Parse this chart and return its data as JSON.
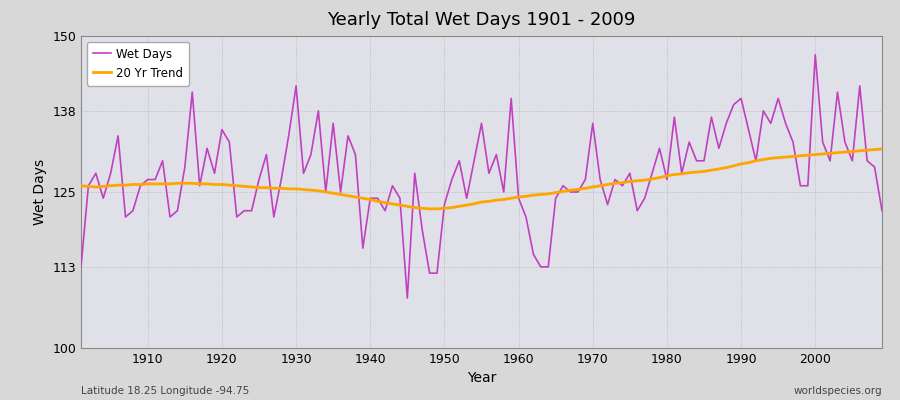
{
  "title": "Yearly Total Wet Days 1901 - 2009",
  "xlabel": "Year",
  "ylabel": "Wet Days",
  "subtitle_left": "Latitude 18.25 Longitude -94.75",
  "subtitle_right": "worldspecies.org",
  "wet_days_color": "#c040c0",
  "trend_color": "#FFA500",
  "fig_bg_color": "#d8d8d8",
  "plot_bg_color": "#e0e0e8",
  "ylim": [
    100,
    150
  ],
  "xlim": [
    1901,
    2009
  ],
  "yticks": [
    100,
    113,
    125,
    138,
    150
  ],
  "xticks": [
    1910,
    1920,
    1930,
    1940,
    1950,
    1960,
    1970,
    1980,
    1990,
    2000
  ],
  "years": [
    1901,
    1902,
    1903,
    1904,
    1905,
    1906,
    1907,
    1908,
    1909,
    1910,
    1911,
    1912,
    1913,
    1914,
    1915,
    1916,
    1917,
    1918,
    1919,
    1920,
    1921,
    1922,
    1923,
    1924,
    1925,
    1926,
    1927,
    1928,
    1929,
    1930,
    1931,
    1932,
    1933,
    1934,
    1935,
    1936,
    1937,
    1938,
    1939,
    1940,
    1941,
    1942,
    1943,
    1944,
    1945,
    1946,
    1947,
    1948,
    1949,
    1950,
    1951,
    1952,
    1953,
    1954,
    1955,
    1956,
    1957,
    1958,
    1959,
    1960,
    1961,
    1962,
    1963,
    1964,
    1965,
    1966,
    1967,
    1968,
    1969,
    1970,
    1971,
    1972,
    1973,
    1974,
    1975,
    1976,
    1977,
    1978,
    1979,
    1980,
    1981,
    1982,
    1983,
    1984,
    1985,
    1986,
    1987,
    1988,
    1989,
    1990,
    1991,
    1992,
    1993,
    1994,
    1995,
    1996,
    1997,
    1998,
    1999,
    2000,
    2001,
    2002,
    2003,
    2004,
    2005,
    2006,
    2007,
    2008,
    2009
  ],
  "wet_days": [
    113,
    126,
    128,
    124,
    128,
    134,
    121,
    122,
    126,
    127,
    127,
    130,
    121,
    122,
    129,
    141,
    126,
    132,
    128,
    135,
    133,
    121,
    122,
    122,
    127,
    131,
    121,
    127,
    134,
    142,
    128,
    131,
    138,
    125,
    136,
    125,
    134,
    131,
    116,
    124,
    124,
    122,
    126,
    124,
    108,
    128,
    119,
    112,
    112,
    123,
    127,
    130,
    124,
    130,
    136,
    128,
    131,
    125,
    140,
    124,
    121,
    115,
    113,
    113,
    124,
    126,
    125,
    125,
    127,
    136,
    127,
    123,
    127,
    126,
    128,
    122,
    124,
    128,
    132,
    127,
    137,
    128,
    133,
    130,
    130,
    137,
    132,
    136,
    139,
    140,
    135,
    130,
    138,
    136,
    140,
    136,
    133,
    126,
    126,
    147,
    133,
    130,
    141,
    133,
    130,
    142,
    130,
    129,
    122
  ],
  "trend": [
    126.0,
    125.9,
    125.8,
    125.9,
    126.0,
    126.1,
    126.1,
    126.2,
    126.2,
    126.3,
    126.3,
    126.3,
    126.3,
    126.4,
    126.4,
    126.4,
    126.3,
    126.3,
    126.2,
    126.2,
    126.1,
    126.0,
    125.9,
    125.8,
    125.7,
    125.7,
    125.6,
    125.6,
    125.5,
    125.5,
    125.4,
    125.3,
    125.2,
    125.0,
    124.8,
    124.6,
    124.4,
    124.2,
    124.0,
    123.8,
    123.5,
    123.3,
    123.1,
    122.9,
    122.7,
    122.5,
    122.4,
    122.3,
    122.3,
    122.4,
    122.5,
    122.7,
    122.9,
    123.1,
    123.4,
    123.5,
    123.7,
    123.8,
    124.0,
    124.2,
    124.3,
    124.5,
    124.6,
    124.7,
    124.9,
    125.1,
    125.3,
    125.4,
    125.6,
    125.8,
    126.0,
    126.2,
    126.4,
    126.5,
    126.7,
    126.8,
    126.9,
    127.1,
    127.3,
    127.6,
    127.8,
    127.9,
    128.1,
    128.2,
    128.3,
    128.5,
    128.7,
    128.9,
    129.2,
    129.5,
    129.7,
    130.0,
    130.2,
    130.4,
    130.5,
    130.6,
    130.7,
    130.8,
    130.9,
    131.0,
    131.1,
    131.2,
    131.3,
    131.4,
    131.5,
    131.6,
    131.7,
    131.8,
    131.9
  ]
}
